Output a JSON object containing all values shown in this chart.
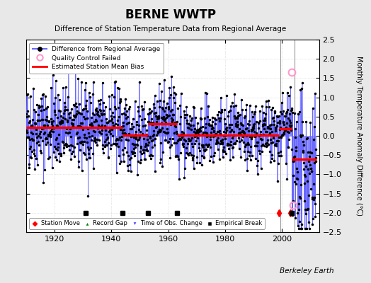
{
  "title": "BERNE WWTP",
  "subtitle": "Difference of Station Temperature Data from Regional Average",
  "ylabel": "Monthly Temperature Anomaly Difference (°C)",
  "ylim": [
    -2.5,
    2.5
  ],
  "xlim": [
    1910,
    2013
  ],
  "xticks": [
    1920,
    1940,
    1960,
    1980,
    2000
  ],
  "yticks": [
    -2.5,
    -2,
    -1.5,
    -1,
    -0.5,
    0,
    0.5,
    1,
    1.5,
    2,
    2.5
  ],
  "credit": "Berkeley Earth",
  "background_color": "#e8e8e8",
  "plot_bg_color": "#ffffff",
  "line_color": "#6666ff",
  "dot_color": "#000000",
  "bias_color": "#ff0000",
  "qc_color": "#ff99cc",
  "vertical_lines": [
    1999.5,
    2004.5
  ],
  "station_moves": [
    1999.0,
    2003.0
  ],
  "empirical_breaks": [
    1931.0,
    1944.0,
    1953.0,
    1963.0,
    2003.5
  ],
  "qc_failed_points": [
    [
      2003.5,
      1.65
    ],
    [
      2004.0,
      -1.8
    ]
  ],
  "bias_segments": [
    {
      "x": [
        1910,
        1944
      ],
      "y": [
        0.22,
        0.22
      ]
    },
    {
      "x": [
        1944,
        1953
      ],
      "y": [
        0.02,
        0.02
      ]
    },
    {
      "x": [
        1953,
        1963
      ],
      "y": [
        0.32,
        0.32
      ]
    },
    {
      "x": [
        1963,
        1999
      ],
      "y": [
        0.02,
        0.02
      ]
    },
    {
      "x": [
        1999,
        2003.5
      ],
      "y": [
        0.18,
        0.18
      ]
    },
    {
      "x": [
        2003.5,
        2012
      ],
      "y": [
        -0.6,
        -0.6
      ]
    }
  ],
  "segments": [
    {
      "start": 1910,
      "end": 1944,
      "bias": 0.22,
      "amp": 0.55
    },
    {
      "start": 1944,
      "end": 1953,
      "bias": 0.02,
      "amp": 0.45
    },
    {
      "start": 1953,
      "end": 1963,
      "bias": 0.32,
      "amp": 0.5
    },
    {
      "start": 1963,
      "end": 1999,
      "bias": 0.02,
      "amp": 0.42
    },
    {
      "start": 1999,
      "end": 2003.5,
      "bias": 0.18,
      "amp": 0.45
    },
    {
      "start": 2003.5,
      "end": 2012,
      "bias": -0.6,
      "amp": 0.6
    }
  ],
  "seed": 42
}
